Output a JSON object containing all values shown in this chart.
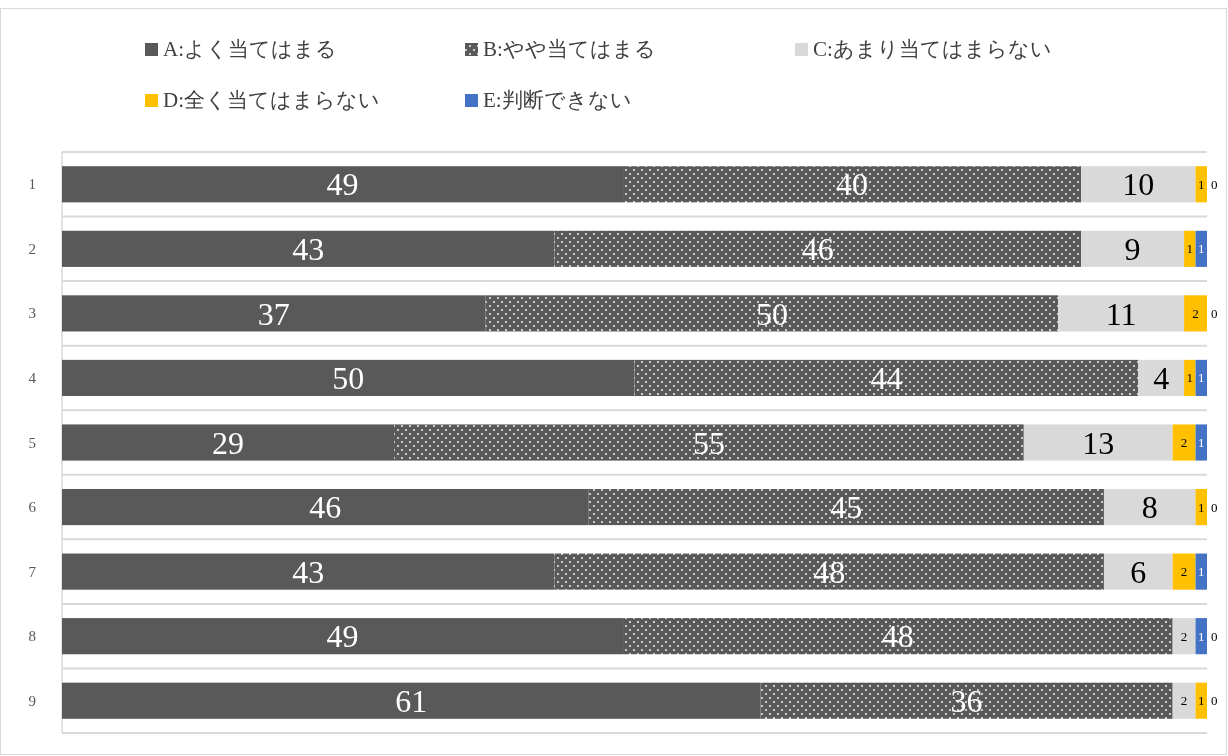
{
  "chart_data": {
    "type": "bar",
    "orientation": "horizontal",
    "stacked": true,
    "data_labels": true,
    "grid": "y",
    "legend": "top",
    "categories": [
      "1",
      "2",
      "3",
      "4",
      "5",
      "6",
      "7",
      "8",
      "9"
    ],
    "series": [
      {
        "name": "A:よく当てはまる",
        "color": "#595959",
        "values": [
          49,
          43,
          37,
          50,
          29,
          46,
          43,
          49,
          61
        ]
      },
      {
        "name": "B:やや当てはまる",
        "color": "#595959",
        "values": [
          40,
          46,
          50,
          44,
          55,
          45,
          48,
          48,
          36
        ]
      },
      {
        "name": "C:あまり当てはまらない",
        "color": "#d9d9d9",
        "values": [
          10,
          9,
          11,
          4,
          13,
          8,
          6,
          2,
          2
        ]
      },
      {
        "name": "D:全く当てはまらない",
        "color": "#ffc000",
        "values": [
          1,
          1,
          2,
          1,
          2,
          1,
          2,
          0,
          1
        ]
      },
      {
        "name": "E:判断できない",
        "color": "#4472c4",
        "values": [
          0,
          1,
          0,
          1,
          1,
          0,
          1,
          1,
          0
        ]
      }
    ]
  }
}
